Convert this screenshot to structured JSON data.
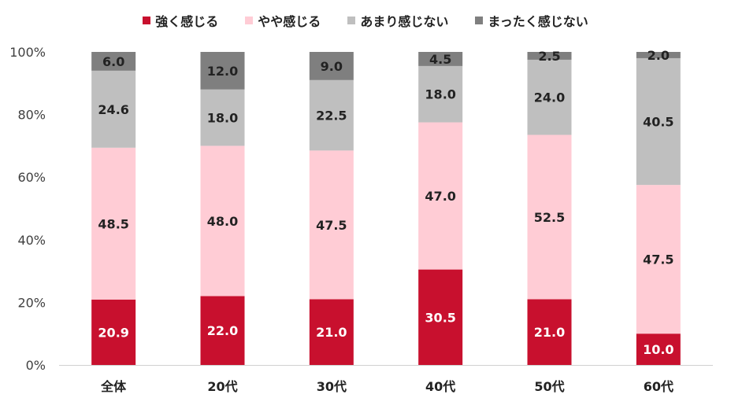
{
  "chart_data": {
    "type": "bar",
    "stacked": true,
    "categories": [
      "全体",
      "20代",
      "30代",
      "40代",
      "50代",
      "60代"
    ],
    "series": [
      {
        "name": "強く感じる",
        "color": "#c8102e",
        "label_color": "#ffffff",
        "values": [
          20.9,
          22.0,
          21.0,
          30.5,
          21.0,
          10.0
        ]
      },
      {
        "name": "やや感じる",
        "color": "#ffccd5",
        "label_color": "#222222",
        "values": [
          48.5,
          48.0,
          47.5,
          47.0,
          52.5,
          47.5
        ]
      },
      {
        "name": "あまり感じない",
        "color": "#bfbfbf",
        "label_color": "#222222",
        "values": [
          24.6,
          18.0,
          22.5,
          18.0,
          24.0,
          40.5
        ]
      },
      {
        "name": "まったく感じない",
        "color": "#7f7f7f",
        "label_color": "#222222",
        "values": [
          6.0,
          12.0,
          9.0,
          4.5,
          2.5,
          2.0
        ]
      }
    ],
    "value_labels": [
      [
        "20.9",
        "22.0",
        "21.0",
        "30.5",
        "21.0",
        "10.0"
      ],
      [
        "48.5",
        "48.0",
        "47.5",
        "47.0",
        "52.5",
        "47.5"
      ],
      [
        "24.6",
        "18.0",
        "22.5",
        "18.0",
        "24.0",
        "40.5"
      ],
      [
        "6.0",
        "12.0",
        "9.0",
        "4.5",
        "2.5",
        "2.0"
      ]
    ],
    "yticks": [
      "0%",
      "20%",
      "40%",
      "60%",
      "80%",
      "100%"
    ],
    "ylim": [
      0,
      100
    ],
    "legend_position": "top",
    "grid": false
  }
}
